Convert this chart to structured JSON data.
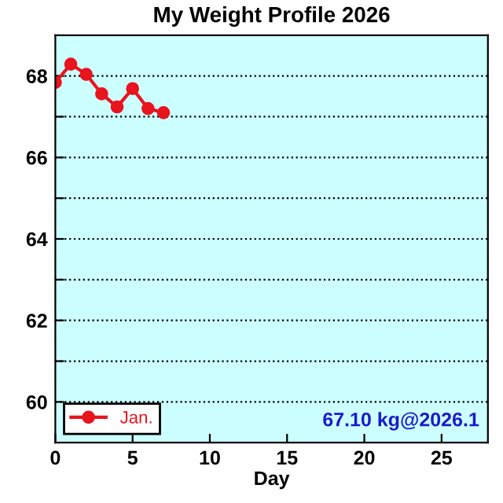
{
  "chart_data": {
    "type": "line",
    "title": "My Weight Profile 2026",
    "xlabel": "Day",
    "x": [
      0,
      1,
      2,
      3,
      4,
      5,
      6,
      7
    ],
    "series": [
      {
        "name": "Jan.",
        "color": "#e8141e",
        "values": [
          67.84,
          68.29,
          68.04,
          67.56,
          67.24,
          67.69,
          67.2,
          67.1
        ]
      }
    ],
    "xlim": [
      0,
      28
    ],
    "xticks": [
      0,
      5,
      10,
      15,
      20,
      25
    ],
    "ylim": [
      59,
      69
    ],
    "yticks": [
      60,
      {
        "value": 61,
        "label": null
      },
      62,
      {
        "value": 63,
        "label": null
      },
      64,
      {
        "value": 65,
        "label": null
      },
      66,
      {
        "value": 67,
        "label": null
      },
      68
    ],
    "annotations": [
      "67.10 kg@2026.1"
    ],
    "grid": "y",
    "legend": "bottom left",
    "marker": "circle",
    "line_style": "solid"
  }
}
